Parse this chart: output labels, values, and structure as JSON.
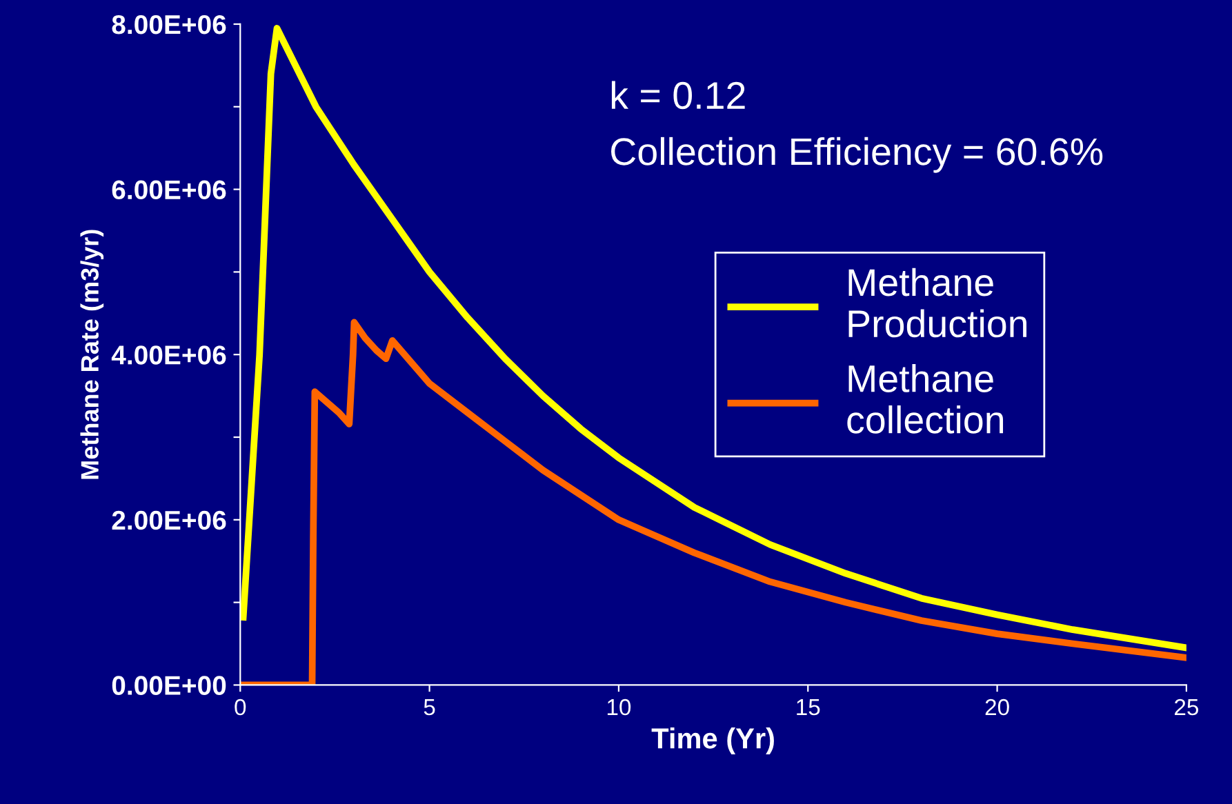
{
  "chart_data": {
    "type": "line",
    "xlabel": "Time (Yr)",
    "ylabel": "Methane Rate (m3/yr)",
    "annotations": [
      "k = 0.12",
      "Collection Efficiency = 60.6%"
    ],
    "xlim": [
      0,
      25
    ],
    "xticks": [
      0,
      5,
      10,
      15,
      20,
      25
    ],
    "ylim": [
      0,
      8000000
    ],
    "yticks": [
      {
        "value": 0,
        "label": "0.00E+00"
      },
      {
        "value": 1000000,
        "label": null
      },
      {
        "value": 2000000,
        "label": "2.00E+06"
      },
      {
        "value": 3000000,
        "label": null
      },
      {
        "value": 4000000,
        "label": "4.00E+06"
      },
      {
        "value": 5000000,
        "label": null
      },
      {
        "value": 6000000,
        "label": "6.00E+06"
      },
      {
        "value": 7000000,
        "label": null
      },
      {
        "value": 8000000,
        "label": "8.00E+06"
      }
    ],
    "grid": false,
    "legend": "right",
    "line_style": "solid",
    "marker": "none",
    "series": [
      {
        "name": "Methane Production",
        "color": "#ffff00",
        "x": [
          0.08,
          0.51,
          0.81,
          0.97,
          2,
          3,
          4,
          5,
          6,
          7,
          8,
          9,
          10,
          12,
          14,
          16,
          18,
          20,
          22,
          25
        ],
        "values": [
          820000,
          4000000,
          7400000,
          7950000,
          7000000,
          6300000,
          5650000,
          5000000,
          4450000,
          3950000,
          3500000,
          3100000,
          2750000,
          2150000,
          1700000,
          1350000,
          1050000,
          850000,
          670000,
          450000
        ]
      },
      {
        "name": "Methane collection",
        "color": "#ff6600",
        "x": [
          0,
          1.9,
          1.93,
          1.97,
          2.6,
          2.88,
          2.92,
          2.98,
          3.01,
          3.3,
          3.6,
          3.85,
          4.02,
          5,
          6,
          7,
          8,
          9,
          10,
          12,
          14,
          16,
          18,
          20,
          22,
          25
        ],
        "values": [
          0,
          0,
          1800000,
          3550000,
          3300000,
          3160000,
          3500000,
          4000000,
          4390000,
          4200000,
          4050000,
          3950000,
          4170000,
          3650000,
          3300000,
          2950000,
          2600000,
          2300000,
          2000000,
          1600000,
          1250000,
          1000000,
          780000,
          620000,
          500000,
          330000
        ]
      }
    ]
  }
}
